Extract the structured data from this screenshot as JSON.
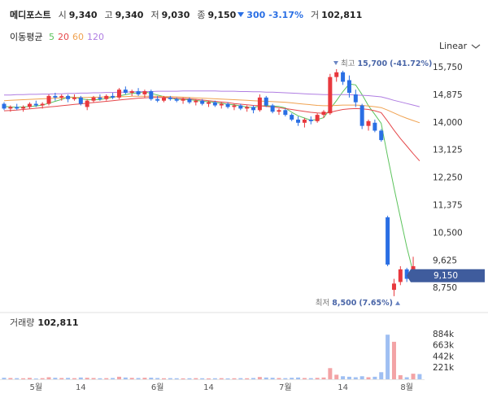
{
  "header": {
    "name": "메디포스트",
    "quote": [
      {
        "label": "시",
        "value": "9,340"
      },
      {
        "label": "고",
        "value": "9,340"
      },
      {
        "label": "저",
        "value": "9,030"
      },
      {
        "label": "종",
        "value": "9,150"
      }
    ],
    "change": "300",
    "change_pct": "-3.17%",
    "volume_label": "거",
    "volume": "102,811"
  },
  "chart_data": [
    {
      "type": "candlestick",
      "legend_title": "이동평균",
      "scale": "Linear",
      "up_color": "#e8383d",
      "down_color": "#2a6fe4",
      "categories": [
        null,
        null,
        null,
        null,
        null,
        "5월",
        null,
        null,
        null,
        null,
        null,
        null,
        "14",
        null,
        null,
        null,
        null,
        null,
        null,
        null,
        null,
        null,
        null,
        null,
        "6월",
        null,
        null,
        null,
        null,
        null,
        null,
        null,
        "14",
        null,
        null,
        null,
        null,
        null,
        null,
        null,
        null,
        null,
        null,
        null,
        "7월",
        null,
        null,
        null,
        null,
        null,
        null,
        null,
        null,
        "14",
        null,
        null,
        null,
        null,
        null,
        null,
        null,
        null,
        null,
        "8월",
        null,
        null
      ],
      "open": [
        14600,
        14450,
        14500,
        14450,
        14500,
        14600,
        14550,
        14600,
        14850,
        14800,
        14850,
        14750,
        14800,
        14500,
        14700,
        14800,
        14750,
        14850,
        14800,
        15050,
        14950,
        15000,
        14900,
        15000,
        14750,
        14700,
        14800,
        14750,
        14700,
        14750,
        14650,
        14700,
        14600,
        14650,
        14550,
        14600,
        14500,
        14550,
        14450,
        14500,
        14400,
        14800,
        14550,
        14350,
        14400,
        14250,
        14100,
        14000,
        14100,
        14050,
        14250,
        14300,
        15450,
        15600,
        15350,
        14900,
        14550,
        13900,
        14000,
        13750,
        11000,
        8700,
        8950,
        9350,
        9050,
        9340
      ],
      "high": [
        14650,
        14550,
        14600,
        14550,
        14650,
        14700,
        14650,
        14900,
        14950,
        14900,
        14900,
        14900,
        14850,
        14750,
        14850,
        14900,
        14900,
        14950,
        15100,
        15150,
        15050,
        15100,
        15050,
        15050,
        14850,
        14850,
        14850,
        14800,
        14800,
        14800,
        14750,
        14750,
        14700,
        14700,
        14650,
        14650,
        14600,
        14600,
        14550,
        14550,
        14900,
        14850,
        14600,
        14450,
        14450,
        14300,
        14200,
        14150,
        14200,
        14300,
        14400,
        15550,
        15700,
        15650,
        15500,
        15050,
        14600,
        14100,
        14100,
        13800,
        11050,
        9050,
        9450,
        9400,
        9750,
        9340
      ],
      "low": [
        14400,
        14350,
        14400,
        14350,
        14450,
        14500,
        14450,
        14550,
        14700,
        14700,
        14650,
        14700,
        14550,
        14400,
        14650,
        14700,
        14700,
        14750,
        14750,
        14900,
        14850,
        14850,
        14800,
        14700,
        14650,
        14650,
        14700,
        14650,
        14600,
        14600,
        14550,
        14550,
        14500,
        14500,
        14450,
        14450,
        14400,
        14400,
        14350,
        14300,
        14350,
        14500,
        14300,
        14250,
        14200,
        14050,
        13900,
        13850,
        13950,
        14000,
        14150,
        14250,
        15300,
        15200,
        14800,
        14500,
        13800,
        13750,
        13700,
        13400,
        9450,
        8500,
        8850,
        8950,
        9000,
        9030
      ],
      "close": [
        14450,
        14500,
        14450,
        14500,
        14600,
        14550,
        14600,
        14850,
        14800,
        14850,
        14750,
        14800,
        14600,
        14700,
        14800,
        14750,
        14850,
        14800,
        15050,
        14950,
        15000,
        14900,
        15000,
        14750,
        14700,
        14800,
        14750,
        14700,
        14750,
        14650,
        14700,
        14600,
        14650,
        14550,
        14600,
        14500,
        14550,
        14450,
        14500,
        14400,
        14800,
        14550,
        14350,
        14400,
        14250,
        14100,
        14000,
        14100,
        14050,
        14250,
        14350,
        15450,
        15600,
        15300,
        14950,
        14650,
        13900,
        14050,
        13750,
        13450,
        9500,
        8900,
        9350,
        9050,
        9450,
        9150
      ],
      "series": [
        {
          "name": "5",
          "color": "#5cc35c",
          "values": [
            14520,
            14500,
            14490,
            14500,
            14520,
            14530,
            14560,
            14620,
            14680,
            14740,
            14810,
            14810,
            14760,
            14730,
            14730,
            14730,
            14780,
            14800,
            14850,
            14890,
            14930,
            14950,
            14980,
            14930,
            14880,
            14830,
            14790,
            14740,
            14740,
            14730,
            14710,
            14680,
            14670,
            14640,
            14620,
            14580,
            14570,
            14530,
            14500,
            14480,
            14530,
            14540,
            14530,
            14520,
            14470,
            14330,
            14220,
            14150,
            14080,
            14100,
            14160,
            14440,
            14700,
            14990,
            15230,
            15200,
            14890,
            14540,
            14260,
            13980,
            12930,
            11930,
            10990,
            10050,
            9250,
            9180
          ]
        },
        {
          "name": "20",
          "color": "#e5484b",
          "values": [
            14380,
            14390,
            14400,
            14420,
            14440,
            14460,
            14480,
            14500,
            14520,
            14540,
            14560,
            14580,
            14600,
            14620,
            14640,
            14660,
            14680,
            14700,
            14720,
            14740,
            14760,
            14780,
            14790,
            14800,
            14800,
            14800,
            14790,
            14780,
            14770,
            14760,
            14740,
            14720,
            14700,
            14680,
            14660,
            14640,
            14610,
            14590,
            14570,
            14550,
            14540,
            14520,
            14500,
            14480,
            14450,
            14420,
            14390,
            14360,
            14330,
            14310,
            14300,
            14330,
            14380,
            14420,
            14440,
            14450,
            14440,
            14420,
            14380,
            14320,
            14050,
            13760,
            13500,
            13260,
            13020,
            12790
          ]
        },
        {
          "name": "60",
          "color": "#f0a250",
          "values": [
            14700,
            14710,
            14720,
            14730,
            14740,
            14750,
            14760,
            14770,
            14780,
            14790,
            14800,
            14800,
            14800,
            14800,
            14810,
            14810,
            14820,
            14820,
            14830,
            14830,
            14840,
            14840,
            14840,
            14840,
            14840,
            14830,
            14830,
            14820,
            14810,
            14800,
            14790,
            14780,
            14770,
            14760,
            14750,
            14740,
            14730,
            14720,
            14710,
            14700,
            14690,
            14680,
            14670,
            14660,
            14650,
            14630,
            14610,
            14590,
            14570,
            14550,
            14540,
            14540,
            14550,
            14560,
            14560,
            14560,
            14550,
            14530,
            14510,
            14480,
            14400,
            14310,
            14220,
            14140,
            14070,
            14000
          ]
        },
        {
          "name": "120",
          "color": "#b07ee2",
          "values": [
            14880,
            14880,
            14890,
            14890,
            14900,
            14900,
            14910,
            14910,
            14920,
            14920,
            14930,
            14930,
            14940,
            14940,
            14950,
            14950,
            14960,
            14960,
            14970,
            14970,
            14980,
            14980,
            14990,
            14990,
            15000,
            15000,
            15000,
            15000,
            15010,
            15010,
            15010,
            15010,
            15010,
            15010,
            15000,
            15000,
            15000,
            14990,
            14990,
            14980,
            14980,
            14970,
            14970,
            14960,
            14950,
            14940,
            14930,
            14920,
            14910,
            14900,
            14890,
            14890,
            14890,
            14890,
            14890,
            14880,
            14870,
            14860,
            14840,
            14820,
            14770,
            14710,
            14660,
            14610,
            14560,
            14510
          ]
        }
      ],
      "ylim": [
        8084,
        16344
      ],
      "yticks": [
        {
          "value": 15750,
          "label": "15,750"
        },
        {
          "value": 14875,
          "label": "14,875"
        },
        {
          "value": 14000,
          "label": "14,000"
        },
        {
          "value": 13125,
          "label": "13,125"
        },
        {
          "value": 12250,
          "label": "12,250"
        },
        {
          "value": 11375,
          "label": "11,375"
        },
        {
          "value": 10500,
          "label": "10,500"
        },
        {
          "value": 9625,
          "label": "9,625"
        },
        {
          "value": 8750,
          "label": "8,750"
        }
      ],
      "annotations": [
        {
          "label": "최고",
          "value": 15700,
          "value_label": "15,700",
          "change": "(-41.72%)"
        },
        {
          "label": "최저",
          "value": 8500,
          "value_label": "8,500",
          "change": "(7.65%)"
        }
      ],
      "last_price": {
        "value": 9150,
        "label": "9,150",
        "color": "#3f5c9d"
      }
    },
    {
      "type": "bar",
      "title": "거래량",
      "title_value": "102,811",
      "up_color": "#f3a3a5",
      "down_color": "#9fbff2",
      "values": [
        30000,
        25000,
        22000,
        20000,
        28000,
        15000,
        22000,
        40000,
        30000,
        25000,
        28000,
        22000,
        35000,
        30000,
        25000,
        20000,
        22000,
        25000,
        50000,
        35000,
        28000,
        25000,
        30000,
        32000,
        25000,
        20000,
        22000,
        20000,
        18000,
        20000,
        22000,
        20000,
        18000,
        20000,
        22000,
        18000,
        20000,
        22000,
        20000,
        25000,
        45000,
        35000,
        30000,
        25000,
        22000,
        30000,
        35000,
        25000,
        22000,
        28000,
        35000,
        220000,
        90000,
        60000,
        50000,
        40000,
        60000,
        40000,
        50000,
        140000,
        880000,
        740000,
        80000,
        40000,
        110000,
        102811
      ],
      "ylim": [
        0,
        1060000
      ],
      "yticks": [
        {
          "value": 884000,
          "label": "884k"
        },
        {
          "value": 663000,
          "label": "663k"
        },
        {
          "value": 442000,
          "label": "442k"
        },
        {
          "value": 221000,
          "label": "221k"
        }
      ]
    }
  ]
}
